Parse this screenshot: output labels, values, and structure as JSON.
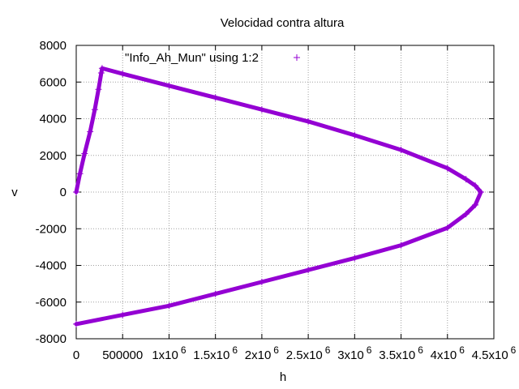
{
  "chart_data": {
    "type": "scatter",
    "title": "Velocidad contra altura",
    "xlabel": "h",
    "ylabel": "v",
    "xlim": [
      0,
      4500000
    ],
    "ylim": [
      -8000,
      8000
    ],
    "grid": true,
    "legend_placement": "top-left",
    "x_ticks": [
      {
        "value": 0,
        "base": "0",
        "exp": ""
      },
      {
        "value": 500000,
        "base": "500000",
        "exp": ""
      },
      {
        "value": 1000000,
        "base": "1x10",
        "exp": "6"
      },
      {
        "value": 1500000,
        "base": "1.5x10",
        "exp": "6"
      },
      {
        "value": 2000000,
        "base": "2x10",
        "exp": "6"
      },
      {
        "value": 2500000,
        "base": "2.5x10",
        "exp": "6"
      },
      {
        "value": 3000000,
        "base": "3x10",
        "exp": "6"
      },
      {
        "value": 3500000,
        "base": "3.5x10",
        "exp": "6"
      },
      {
        "value": 4000000,
        "base": "4x10",
        "exp": "6"
      },
      {
        "value": 4500000,
        "base": "4.5x10",
        "exp": "6"
      }
    ],
    "y_ticks": [
      {
        "value": -8000,
        "label": "-8000"
      },
      {
        "value": -6000,
        "label": "-6000"
      },
      {
        "value": -4000,
        "label": "-4000"
      },
      {
        "value": -2000,
        "label": "-2000"
      },
      {
        "value": 0,
        "label": "0"
      },
      {
        "value": 2000,
        "label": "2000"
      },
      {
        "value": 4000,
        "label": "4000"
      },
      {
        "value": 6000,
        "label": "6000"
      },
      {
        "value": 8000,
        "label": "8000"
      }
    ],
    "series": [
      {
        "name": "\"Info_Ah_Mun\" using 1:2",
        "color": "#9400d3",
        "marker": "+",
        "x": [
          0,
          40000,
          90000,
          150000,
          200000,
          240000,
          270000,
          279000,
          500000,
          1000000,
          1500000,
          2000000,
          2500000,
          3000000,
          3500000,
          4000000,
          4200000,
          4300000,
          4360000,
          4300000,
          4200000,
          4000000,
          3500000,
          3000000,
          2500000,
          2000000,
          1500000,
          1000000,
          500000,
          0
        ],
        "y": [
          0,
          1000,
          2100,
          3300,
          4500,
          5600,
          6500,
          6750,
          6450,
          5800,
          5150,
          4500,
          3850,
          3100,
          2300,
          1300,
          700,
          350,
          0,
          -700,
          -1200,
          -1950,
          -2900,
          -3600,
          -4250,
          -4900,
          -5550,
          -6200,
          -6700,
          -7200
        ]
      }
    ]
  }
}
